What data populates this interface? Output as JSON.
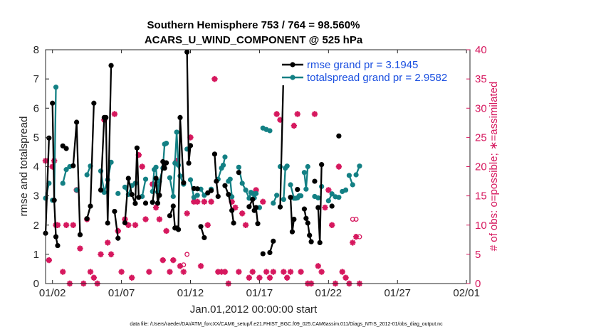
{
  "chart_data": {
    "type": "line",
    "title_line1": "Southern Hemisphere 753 / 764 = 98.560%",
    "title_line2": "ACARS_U_WIND_COMPONENT @ 525 hPa",
    "xlabel": "Jan.01,2012 00:00:00 start",
    "ylabel_left": "rmse and totalspread",
    "ylabel_right": "# of obs: o=possible; ∗=assimilated",
    "x_range": [
      0.5,
      31.25
    ],
    "ylim_left": [
      0,
      8
    ],
    "ylim_right": [
      0,
      40
    ],
    "x_ticks": [
      {
        "x": 1.0,
        "label": "01/02"
      },
      {
        "x": 6.0,
        "label": "01/07"
      },
      {
        "x": 11.0,
        "label": "01/12"
      },
      {
        "x": 16.0,
        "label": "01/17"
      },
      {
        "x": 21.0,
        "label": "01/22"
      },
      {
        "x": 26.0,
        "label": "01/27"
      },
      {
        "x": 31.0,
        "label": "02/01"
      }
    ],
    "y_ticks_left": [
      "0",
      "1",
      "2",
      "3",
      "4",
      "5",
      "6",
      "7",
      "8"
    ],
    "y_ticks_right": [
      "0",
      "5",
      "10",
      "15",
      "20",
      "25",
      "30",
      "35",
      "40"
    ],
    "colors": {
      "rmse": "#000000",
      "spread": "#138084",
      "obs": "#d6185e",
      "legend_text": "#1a4fe0"
    },
    "legend": [
      {
        "name": "rmse grand pr = 3.1945"
      },
      {
        "name": "totalspread grand pr = 2.9582"
      }
    ],
    "rmse": [
      [
        0.5,
        1.72
      ],
      [
        0.75,
        4.98
      ],
      null,
      [
        1.0,
        6.17
      ],
      [
        1.125,
        2.85
      ],
      [
        1.25,
        1.6
      ],
      [
        1.375,
        1.3
      ],
      null,
      [
        1.75,
        4.71
      ],
      [
        2.0,
        4.62
      ],
      null,
      [
        2.5,
        4.03
      ],
      [
        2.75,
        5.52
      ],
      [
        3.0,
        1.67
      ],
      null,
      [
        3.5,
        2.22
      ],
      [
        3.75,
        2.65
      ],
      [
        4.0,
        6.17
      ],
      null,
      [
        4.5,
        3.2
      ],
      [
        4.75,
        5.68
      ],
      [
        4.875,
        5.68
      ],
      [
        5.0,
        2.07
      ],
      [
        5.25,
        7.46
      ],
      null,
      [
        5.5,
        2.47
      ],
      [
        5.75,
        1.55
      ],
      null,
      [
        6.25,
        2.08
      ],
      [
        6.5,
        3.6
      ],
      [
        6.75,
        3.05
      ],
      [
        7.0,
        2.74
      ],
      [
        7.125,
        4.64
      ],
      [
        7.25,
        2.95
      ],
      null,
      [
        7.75,
        2.75
      ],
      null,
      [
        8.25,
        2.78
      ],
      [
        8.5,
        3.6
      ],
      [
        8.625,
        2.75
      ],
      [
        8.75,
        3.02
      ],
      [
        9.0,
        4.17
      ],
      [
        9.125,
        3.95
      ],
      [
        9.25,
        4.13
      ],
      null,
      [
        9.5,
        2.32
      ],
      [
        9.75,
        2.65
      ],
      [
        9.875,
        1.9
      ],
      [
        10.0,
        1.9
      ],
      [
        10.125,
        1.85
      ],
      [
        10.25,
        5.68
      ],
      [
        10.5,
        3.45
      ],
      null,
      [
        10.75,
        7.92
      ],
      [
        10.875,
        4.12
      ],
      [
        11.0,
        4.72
      ],
      null,
      [
        11.25,
        3.25
      ],
      [
        11.5,
        3.24
      ],
      null,
      [
        11.75,
        1.95
      ],
      [
        12.0,
        1.57
      ],
      null,
      [
        12.25,
        3.1
      ],
      [
        12.5,
        3.18
      ],
      null,
      [
        12.75,
        4.43
      ],
      [
        12.875,
        3.5
      ],
      [
        13.0,
        2.98
      ],
      null,
      [
        13.5,
        3.35
      ],
      [
        13.75,
        3.05
      ],
      [
        14.0,
        2.5
      ],
      [
        14.125,
        2.07
      ],
      null,
      [
        14.5,
        3.8
      ],
      null,
      [
        15.25,
        2.63
      ],
      [
        15.5,
        2.88
      ],
      [
        15.625,
        2.5
      ],
      null,
      [
        15.75,
        2.6
      ],
      [
        15.875,
        2.05
      ],
      null,
      [
        16.25,
        1.02
      ],
      null,
      [
        16.75,
        1.06
      ],
      [
        17.0,
        1.45
      ],
      null,
      [
        17.5,
        2.62
      ],
      [
        17.75,
        7.38
      ],
      null,
      [
        18.25,
        2.95
      ],
      [
        18.375,
        1.77
      ],
      [
        18.5,
        2.2
      ],
      null,
      [
        18.75,
        3.22
      ],
      null,
      [
        19.25,
        2.55
      ],
      [
        19.375,
        2.23
      ],
      [
        19.5,
        2.07
      ],
      [
        19.625,
        1.65
      ],
      [
        19.75,
        1.43
      ],
      null,
      [
        20.0,
        3.5
      ],
      null,
      [
        20.25,
        2.6
      ],
      [
        20.375,
        1.4
      ],
      [
        20.5,
        4.07
      ],
      null,
      [
        21.25,
        2.65
      ],
      null,
      [
        21.75,
        5.05
      ],
      null,
      [
        22.5,
        7.28
      ]
    ],
    "spread": [
      [
        0.5,
        2.92
      ],
      [
        0.75,
        3.43
      ],
      null,
      [
        1.0,
        2.85
      ],
      [
        1.125,
        2.85
      ],
      [
        1.25,
        6.72
      ],
      null,
      [
        1.75,
        3.43
      ],
      [
        2.0,
        3.9
      ],
      [
        2.25,
        4.0
      ],
      null,
      [
        2.75,
        3.2
      ],
      null,
      [
        3.5,
        3.72
      ],
      [
        3.75,
        4.02
      ],
      null,
      [
        4.5,
        3.85
      ],
      [
        4.75,
        3.12
      ],
      [
        5.0,
        3.55
      ],
      [
        5.25,
        4.15
      ],
      null,
      [
        5.75,
        3.08
      ],
      null,
      [
        6.25,
        3.3
      ],
      [
        6.5,
        3.05
      ],
      [
        6.75,
        3.35
      ],
      [
        7.0,
        3.43
      ],
      null,
      [
        7.5,
        2.98
      ],
      [
        7.75,
        3.57
      ],
      null,
      [
        8.25,
        3.15
      ],
      [
        8.375,
        3.9
      ],
      [
        8.5,
        3.98
      ],
      [
        8.625,
        3.13
      ],
      [
        8.75,
        3.5
      ],
      [
        9.0,
        3.95
      ],
      [
        9.125,
        4.77
      ],
      [
        9.25,
        4.8
      ],
      null,
      [
        9.5,
        3.62
      ],
      [
        9.75,
        2.98
      ],
      [
        9.875,
        4.12
      ],
      [
        10.0,
        5.18
      ],
      [
        10.125,
        4.05
      ],
      [
        10.25,
        3.68
      ],
      [
        10.5,
        3.4
      ],
      null,
      [
        10.75,
        4.6
      ],
      null,
      [
        11.0,
        3.55
      ],
      [
        11.25,
        2.95
      ],
      null,
      [
        11.5,
        3.02
      ],
      null,
      [
        11.75,
        3.23
      ],
      [
        12.0,
        3.02
      ],
      null,
      [
        12.5,
        3.23
      ],
      null,
      [
        13.0,
        3.57
      ],
      [
        13.25,
        3.95
      ],
      [
        13.375,
        4.05
      ],
      [
        13.5,
        4.33
      ],
      null,
      [
        13.75,
        3.5
      ],
      [
        13.875,
        3.57
      ],
      [
        14.0,
        2.97
      ],
      null,
      [
        14.5,
        3.98
      ],
      [
        14.75,
        3.43
      ],
      [
        15.0,
        3.2
      ],
      [
        15.25,
        2.92
      ],
      [
        15.375,
        3.12
      ],
      [
        15.5,
        3.08
      ],
      [
        15.625,
        2.93
      ],
      null,
      [
        15.75,
        3.08
      ],
      null,
      [
        16.0,
        2.6
      ],
      null,
      [
        16.25,
        5.32
      ],
      [
        16.5,
        5.27
      ],
      null,
      [
        16.75,
        5.23
      ],
      null,
      [
        17.0,
        2.75
      ],
      [
        17.25,
        3.02
      ],
      null,
      [
        17.5,
        4.0
      ],
      null,
      [
        17.75,
        2.88
      ],
      [
        17.875,
        3.95
      ],
      [
        18.0,
        4.02
      ],
      null,
      [
        18.25,
        3.38
      ],
      [
        18.5,
        2.92
      ],
      [
        18.625,
        2.92
      ],
      [
        18.75,
        2.93
      ],
      [
        18.875,
        3.0
      ],
      [
        19.0,
        3.0
      ],
      null,
      [
        19.25,
        3.8
      ],
      [
        19.375,
        3.23
      ],
      [
        19.5,
        4.0
      ],
      null,
      [
        20.0,
        2.98
      ],
      [
        20.25,
        2.93
      ],
      null,
      [
        20.5,
        3.32
      ],
      null,
      [
        21.0,
        2.83
      ],
      [
        21.25,
        3.07
      ],
      [
        21.5,
        2.97
      ],
      [
        21.75,
        2.95
      ],
      null,
      [
        22.0,
        3.15
      ],
      [
        22.25,
        3.2
      ],
      null,
      [
        22.5,
        3.7
      ],
      [
        22.75,
        3.38
      ],
      null,
      [
        23.0,
        3.72
      ],
      [
        23.25,
        4.02
      ]
    ],
    "obs_possible": [
      [
        0.5,
        21
      ],
      [
        0.75,
        4
      ],
      [
        1.0,
        20
      ],
      [
        1.125,
        21
      ],
      [
        1.25,
        10
      ],
      [
        1.375,
        10
      ],
      [
        1.75,
        2
      ],
      [
        2.0,
        10
      ],
      [
        2.25,
        0
      ],
      [
        2.5,
        10
      ],
      [
        2.75,
        16
      ],
      [
        3.0,
        6
      ],
      [
        3.25,
        0
      ],
      [
        3.5,
        11
      ],
      [
        3.75,
        2
      ],
      [
        4.0,
        1
      ],
      [
        4.25,
        0
      ],
      [
        4.5,
        5
      ],
      [
        4.75,
        28
      ],
      [
        5.0,
        7
      ],
      [
        5.25,
        5
      ],
      [
        5.5,
        29
      ],
      [
        5.75,
        9
      ],
      [
        6.0,
        2
      ],
      [
        6.25,
        11
      ],
      [
        6.5,
        10
      ],
      [
        6.75,
        1
      ],
      [
        7.0,
        10
      ],
      [
        7.25,
        22
      ],
      [
        7.5,
        20
      ],
      [
        7.75,
        11
      ],
      [
        8.0,
        2
      ],
      [
        8.25,
        17
      ],
      [
        8.5,
        13
      ],
      [
        8.75,
        11
      ],
      [
        9.0,
        4
      ],
      [
        9.25,
        9
      ],
      [
        9.5,
        2
      ],
      [
        9.75,
        4
      ],
      [
        10.0,
        21
      ],
      [
        10.25,
        3
      ],
      [
        10.5,
        3.2
      ],
      [
        10.75,
        5
      ],
      [
        11.0,
        25
      ],
      [
        11.25,
        14
      ],
      [
        11.5,
        14
      ],
      [
        11.75,
        3
      ],
      [
        12.0,
        14
      ],
      [
        12.25,
        10
      ],
      [
        12.5,
        14
      ],
      [
        12.75,
        35
      ],
      [
        13.0,
        2
      ],
      [
        13.25,
        2
      ],
      [
        13.5,
        2
      ],
      [
        13.75,
        0
      ],
      [
        14.0,
        14
      ],
      [
        14.25,
        13
      ],
      [
        14.5,
        2
      ],
      [
        14.75,
        12
      ],
      [
        15.0,
        10
      ],
      [
        15.25,
        1
      ],
      [
        15.5,
        2
      ],
      [
        15.75,
        16
      ],
      [
        16.0,
        1
      ],
      [
        16.25,
        14
      ],
      [
        16.5,
        2
      ],
      [
        16.75,
        1
      ],
      [
        17.0,
        2
      ],
      [
        17.25,
        29
      ],
      [
        17.5,
        28
      ],
      [
        17.75,
        2
      ],
      [
        18.0,
        1
      ],
      [
        18.25,
        2
      ],
      [
        18.5,
        27
      ],
      [
        18.75,
        29
      ],
      [
        19.0,
        2
      ],
      [
        19.25,
        35
      ],
      [
        19.5,
        0
      ],
      [
        19.75,
        0
      ],
      [
        20.0,
        29
      ],
      [
        20.25,
        3
      ],
      [
        20.5,
        2
      ],
      [
        20.75,
        13
      ],
      [
        21.0,
        16
      ],
      [
        21.25,
        10
      ],
      [
        21.5,
        0
      ],
      [
        21.75,
        20
      ],
      [
        22.0,
        2
      ],
      [
        22.25,
        1
      ],
      [
        22.5,
        0
      ],
      [
        22.75,
        11
      ],
      [
        23.0,
        11
      ],
      [
        23.25,
        8
      ]
    ],
    "obs_assimilated": [
      [
        0.5,
        21
      ],
      [
        0.75,
        4
      ],
      [
        1.0,
        20
      ],
      [
        1.125,
        21
      ],
      [
        1.25,
        10
      ],
      [
        1.375,
        10
      ],
      [
        1.75,
        2
      ],
      [
        2.0,
        10
      ],
      [
        2.25,
        0
      ],
      [
        2.5,
        10
      ],
      [
        2.75,
        16
      ],
      [
        3.0,
        6
      ],
      [
        3.25,
        0
      ],
      [
        3.5,
        11
      ],
      [
        3.75,
        2
      ],
      [
        4.0,
        1
      ],
      [
        4.25,
        0
      ],
      [
        4.5,
        5
      ],
      [
        4.75,
        28
      ],
      [
        5.0,
        7
      ],
      [
        5.25,
        5
      ],
      [
        5.5,
        29
      ],
      [
        5.75,
        9
      ],
      [
        6.0,
        2
      ],
      [
        6.25,
        11
      ],
      [
        6.5,
        10
      ],
      [
        6.75,
        1
      ],
      [
        7.0,
        10
      ],
      [
        7.25,
        22
      ],
      [
        7.5,
        20
      ],
      [
        7.75,
        11
      ],
      [
        8.0,
        2
      ],
      [
        8.25,
        17
      ],
      [
        8.5,
        13
      ],
      [
        8.75,
        11
      ],
      [
        9.0,
        4
      ],
      [
        9.25,
        9
      ],
      [
        9.5,
        2
      ],
      [
        9.75,
        4
      ],
      [
        10.0,
        21
      ],
      [
        10.25,
        3
      ],
      [
        10.5,
        2
      ],
      [
        10.75,
        12
      ],
      [
        11.0,
        25
      ],
      [
        11.25,
        14
      ],
      [
        11.5,
        14
      ],
      [
        11.75,
        3
      ],
      [
        12.0,
        14
      ],
      [
        12.25,
        10
      ],
      [
        12.5,
        14
      ],
      [
        12.75,
        35
      ],
      [
        13.0,
        2
      ],
      [
        13.25,
        2
      ],
      [
        13.5,
        2
      ],
      [
        13.75,
        0
      ],
      [
        14.0,
        14
      ],
      [
        14.25,
        13
      ],
      [
        14.5,
        2
      ],
      [
        14.75,
        12
      ],
      [
        15.0,
        10
      ],
      [
        15.25,
        1
      ],
      [
        15.5,
        2
      ],
      [
        15.75,
        16
      ],
      [
        16.0,
        1
      ],
      [
        16.25,
        14
      ],
      [
        16.5,
        2
      ],
      [
        16.75,
        1
      ],
      [
        17.0,
        2
      ],
      [
        17.25,
        29
      ],
      [
        17.5,
        28
      ],
      [
        17.75,
        2
      ],
      [
        18.0,
        1
      ],
      [
        18.25,
        2
      ],
      [
        18.5,
        27
      ],
      [
        18.75,
        29
      ],
      [
        19.0,
        2
      ],
      [
        19.25,
        35
      ],
      [
        19.5,
        0
      ],
      [
        19.75,
        0
      ],
      [
        20.0,
        29
      ],
      [
        20.25,
        3
      ],
      [
        20.5,
        2
      ],
      [
        20.75,
        13
      ],
      [
        21.0,
        16
      ],
      [
        21.25,
        10
      ],
      [
        21.5,
        0
      ],
      [
        21.75,
        20
      ],
      [
        22.0,
        2
      ],
      [
        22.25,
        1
      ],
      [
        22.5,
        0
      ],
      [
        22.75,
        7
      ],
      [
        23.0,
        8
      ],
      [
        23.25,
        0
      ]
    ],
    "footnote": "data file: /Users/raeder/DAI/ATM_forcXX/CAM6_setup/f.e21.FHIST_BGC.f09_025.CAM6assim.011/Diags_NTrS_2012-01/obs_diag_output.nc"
  }
}
